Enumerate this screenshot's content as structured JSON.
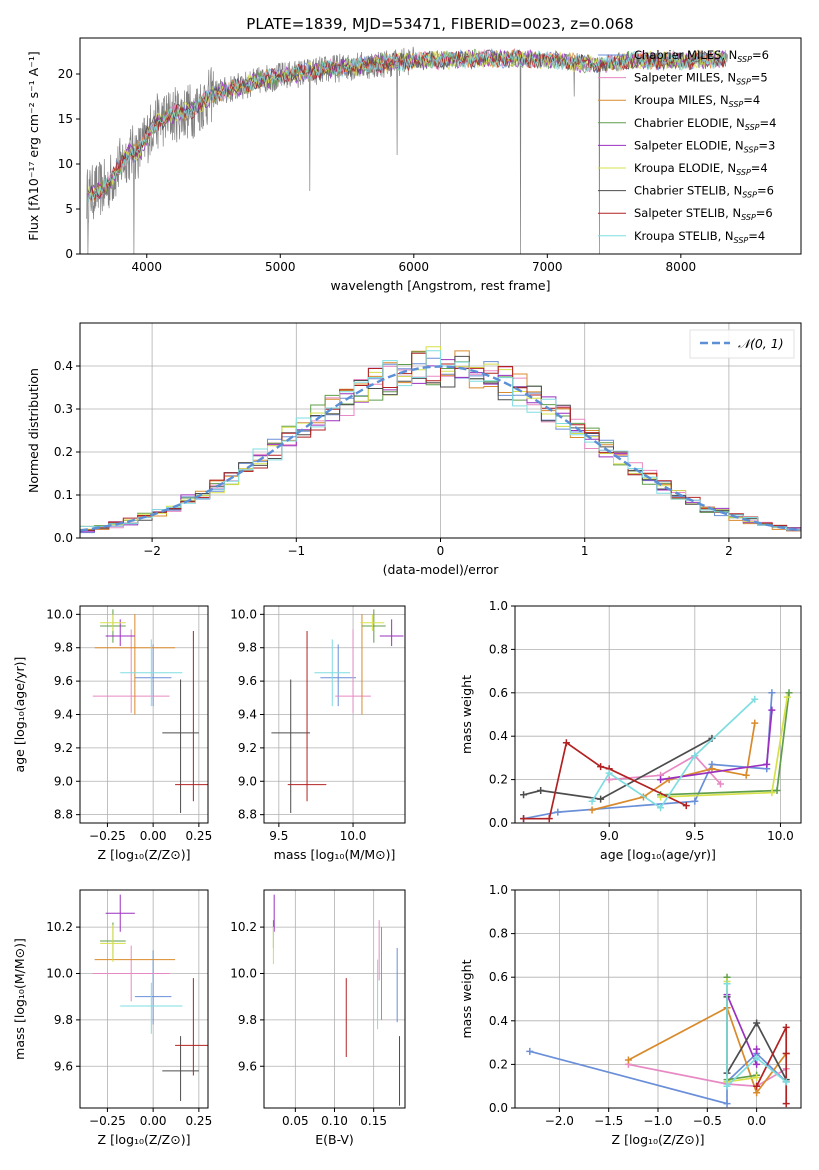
{
  "figure_title": "PLATE=1839, MJD=53471, FIBERID=0023, z=0.068",
  "colors": {
    "Chabrier MILES": "#6a8fd8",
    "Salpeter MILES": "#e78ac3",
    "Kroupa MILES": "#d98a2b",
    "Chabrier ELODIE": "#5f9e4a",
    "Salpeter ELODIE": "#9b30c0",
    "Kroupa ELODIE": "#d6e04a",
    "Chabrier STELIB": "#4d4d4d",
    "Salpeter STELIB": "#b22222",
    "Kroupa STELIB": "#7fdde0",
    "data": "#808080",
    "gaussian": "#5b8fd6"
  },
  "chart_data": [
    {
      "id": "spectrum",
      "type": "line",
      "xlabel": "wavelength [Angstrom, rest frame]",
      "ylabel": "Flux [fλ10⁻¹⁷ erg cm⁻² s⁻¹ A⁻¹]",
      "xlim": [
        3500,
        8900
      ],
      "ylim": [
        0,
        24
      ],
      "xticks": [
        4000,
        5000,
        6000,
        7000,
        8000
      ],
      "yticks": [
        0,
        5,
        10,
        15,
        20
      ],
      "legend_placement": "right",
      "legend": [
        {
          "name": "Chabrier MILES",
          "label": "Chabrier MILES, N",
          "sub": "SSP",
          "tail": "=6"
        },
        {
          "name": "Salpeter MILES",
          "label": "Salpeter MILES, N",
          "sub": "SSP",
          "tail": "=5"
        },
        {
          "name": "Kroupa MILES",
          "label": "Kroupa MILES, N",
          "sub": "SSP",
          "tail": "=4"
        },
        {
          "name": "Chabrier ELODIE",
          "label": "Chabrier ELODIE, N",
          "sub": "SSP",
          "tail": "=4"
        },
        {
          "name": "Salpeter ELODIE",
          "label": "Salpeter ELODIE, N",
          "sub": "SSP",
          "tail": "=3"
        },
        {
          "name": "Kroupa ELODIE",
          "label": "Kroupa ELODIE, N",
          "sub": "SSP",
          "tail": "=4"
        },
        {
          "name": "Chabrier STELIB",
          "label": "Chabrier STELIB, N",
          "sub": "SSP",
          "tail": "=6"
        },
        {
          "name": "Salpeter STELIB",
          "label": "Salpeter STELIB, N",
          "sub": "SSP",
          "tail": "=6"
        },
        {
          "name": "Kroupa STELIB",
          "label": "Kroupa STELIB, N",
          "sub": "SSP",
          "tail": "=4"
        }
      ],
      "continuum": [
        [
          3550,
          6.5
        ],
        [
          3700,
          7.5
        ],
        [
          3850,
          11
        ],
        [
          3950,
          11.5
        ],
        [
          4050,
          14.5
        ],
        [
          4200,
          15.5
        ],
        [
          4350,
          16
        ],
        [
          4500,
          17.8
        ],
        [
          4700,
          18.6
        ],
        [
          4900,
          19.5
        ],
        [
          5200,
          20.2
        ],
        [
          5500,
          20.8
        ],
        [
          5800,
          21.2
        ],
        [
          6000,
          21.5
        ],
        [
          6300,
          21.6
        ],
        [
          6600,
          21.7
        ],
        [
          6800,
          21.7
        ],
        [
          7000,
          21.6
        ],
        [
          7200,
          21.3
        ],
        [
          7400,
          21
        ],
        [
          7600,
          21.5
        ],
        [
          7800,
          21.5
        ],
        [
          8000,
          21.5
        ],
        [
          8200,
          21.6
        ],
        [
          8350,
          21.7
        ]
      ],
      "data_dips": [
        [
          3560,
          0
        ],
        [
          3905,
          0
        ],
        [
          5220,
          7
        ],
        [
          5875,
          11
        ],
        [
          6800,
          0
        ],
        [
          7390,
          0
        ],
        [
          7200,
          17.5
        ]
      ]
    },
    {
      "id": "residuals",
      "type": "line",
      "xlabel": "(data-model)/error",
      "ylabel": "Normed distribution",
      "xlim": [
        -2.5,
        2.5
      ],
      "ylim": [
        0,
        0.5
      ],
      "xticks": [
        -2,
        -1,
        0,
        1,
        2
      ],
      "xtick_labels": [
        "−2",
        "−1",
        "0",
        "1",
        "2"
      ],
      "yticks": [
        0,
        0.1,
        0.2,
        0.3,
        0.4
      ],
      "yticks_labels": [
        "0.0",
        "0.1",
        "0.2",
        "0.3",
        "0.4"
      ],
      "legend": "𝒩(0, 1)",
      "gaussian": {
        "mu": 0,
        "sigma": 1
      },
      "hist_bins": 50
    },
    {
      "id": "age-vs-Z",
      "type": "scatter",
      "xlabel": "Z [log₁₀(Z/Z⊙)]",
      "ylabel": "age  [log₁₀(age/yr)]",
      "xlim": [
        -0.4,
        0.3
      ],
      "ylim": [
        8.75,
        10.05
      ],
      "xticks": [
        -0.25,
        0,
        0.25
      ],
      "xtick_labels": [
        "−0.25",
        "0.00",
        "0.25"
      ],
      "yticks": [
        8.8,
        9.0,
        9.2,
        9.4,
        9.6,
        9.8,
        10.0
      ],
      "points": [
        {
          "name": "Chabrier MILES",
          "x": 0.0,
          "xerr": 0.1,
          "y": 9.62,
          "yerr": [
            0.17,
            0.2
          ]
        },
        {
          "name": "Salpeter MILES",
          "x": -0.12,
          "xerr": 0.21,
          "y": 9.51,
          "yerr": [
            0.1,
            0.4
          ]
        },
        {
          "name": "Kroupa MILES",
          "x": -0.1,
          "xerr": 0.22,
          "y": 9.8,
          "yerr": [
            0.4,
            0.2
          ]
        },
        {
          "name": "Chabrier ELODIE",
          "x": -0.22,
          "xerr": 0.07,
          "y": 9.93,
          "yerr": [
            0.1,
            0.1
          ]
        },
        {
          "name": "Salpeter ELODIE",
          "x": -0.18,
          "xerr": 0.08,
          "y": 9.87,
          "yerr": [
            0.06,
            0.1
          ]
        },
        {
          "name": "Kroupa ELODIE",
          "x": -0.22,
          "xerr": 0.07,
          "y": 9.95,
          "yerr": [
            0.05,
            0.05
          ]
        },
        {
          "name": "Chabrier STELIB",
          "x": 0.15,
          "xerr": 0.1,
          "y": 9.29,
          "yerr": [
            0.48,
            0.32
          ]
        },
        {
          "name": "Salpeter STELIB",
          "x": 0.22,
          "xerr": 0.1,
          "y": 8.98,
          "yerr": [
            0.1,
            0.92
          ]
        },
        {
          "name": "Kroupa STELIB",
          "x": -0.01,
          "xerr": 0.17,
          "y": 9.65,
          "yerr": [
            0.2,
            0.2
          ]
        }
      ]
    },
    {
      "id": "age-vs-mass",
      "type": "scatter",
      "xlabel": "mass [log₁₀(M/M⊙)]",
      "ylabel": "",
      "xlim": [
        9.4,
        10.35
      ],
      "ylim": [
        8.75,
        10.05
      ],
      "xticks": [
        9.5,
        10.0
      ],
      "xtick_labels": [
        "9.5",
        "10.0"
      ],
      "yticks": [
        8.8,
        9.0,
        9.2,
        9.4,
        9.6,
        9.8,
        10.0
      ],
      "points": [
        {
          "name": "Chabrier MILES",
          "x": 9.9,
          "xerr": 0.12,
          "y": 9.62,
          "yerr": [
            0.17,
            0.2
          ]
        },
        {
          "name": "Salpeter MILES",
          "x": 10.0,
          "xerr": 0.12,
          "y": 9.51,
          "yerr": [
            0.1,
            0.4
          ]
        },
        {
          "name": "Kroupa MILES",
          "x": 10.06,
          "xerr": 0.0,
          "y": 9.8,
          "yerr": [
            0.4,
            0.2
          ]
        },
        {
          "name": "Chabrier ELODIE",
          "x": 10.14,
          "xerr": 0.08,
          "y": 9.93,
          "yerr": [
            0.1,
            0.1
          ]
        },
        {
          "name": "Salpeter ELODIE",
          "x": 10.26,
          "xerr": 0.08,
          "y": 9.87,
          "yerr": [
            0.06,
            0.1
          ]
        },
        {
          "name": "Kroupa ELODIE",
          "x": 10.13,
          "xerr": 0.08,
          "y": 9.95,
          "yerr": [
            0.05,
            0.05
          ]
        },
        {
          "name": "Chabrier STELIB",
          "x": 9.58,
          "xerr": 0.13,
          "y": 9.29,
          "yerr": [
            0.48,
            0.32
          ]
        },
        {
          "name": "Salpeter STELIB",
          "x": 9.69,
          "xerr": 0.13,
          "y": 8.98,
          "yerr": [
            0.1,
            0.92
          ]
        },
        {
          "name": "Kroupa STELIB",
          "x": 9.86,
          "xerr": 0.12,
          "y": 9.65,
          "yerr": [
            0.2,
            0.2
          ]
        }
      ]
    },
    {
      "id": "weight-vs-age",
      "type": "line",
      "xlabel": "age  [log₁₀(age/yr)]",
      "ylabel": "mass weight",
      "xlim": [
        8.45,
        10.12
      ],
      "ylim": [
        0,
        1.0
      ],
      "xticks": [
        9.0,
        9.5,
        10.0
      ],
      "xtick_labels": [
        "9.0",
        "9.5",
        "10.0"
      ],
      "yticks": [
        0,
        0.2,
        0.4,
        0.6,
        0.8,
        1.0
      ],
      "yticks_labels": [
        "0.0",
        "0.2",
        "0.4",
        "0.6",
        "0.8",
        "1.0"
      ],
      "series": [
        {
          "name": "Chabrier MILES",
          "x": [
            8.5,
            8.7,
            9.5,
            9.6,
            9.92,
            9.95
          ],
          "y": [
            0.02,
            0.05,
            0.1,
            0.27,
            0.25,
            0.6
          ]
        },
        {
          "name": "Salpeter MILES",
          "x": [
            9.0,
            9.3,
            9.5,
            9.65
          ],
          "y": [
            0.2,
            0.22,
            0.31,
            0.18
          ]
        },
        {
          "name": "Kroupa MILES",
          "x": [
            8.9,
            9.2,
            9.35,
            9.6,
            9.8,
            9.85
          ],
          "y": [
            0.06,
            0.12,
            0.2,
            0.25,
            0.22,
            0.46
          ]
        },
        {
          "name": "Chabrier ELODIE",
          "x": [
            9.3,
            9.98,
            10.05
          ],
          "y": [
            0.13,
            0.15,
            0.6
          ]
        },
        {
          "name": "Salpeter ELODIE",
          "x": [
            9.3,
            9.92,
            9.95
          ],
          "y": [
            0.2,
            0.27,
            0.52
          ]
        },
        {
          "name": "Kroupa ELODIE",
          "x": [
            9.3,
            9.95,
            10.04
          ],
          "y": [
            0.12,
            0.14,
            0.58
          ]
        },
        {
          "name": "Chabrier STELIB",
          "x": [
            8.5,
            8.6,
            8.95,
            9.6
          ],
          "y": [
            0.13,
            0.15,
            0.11,
            0.39
          ]
        },
        {
          "name": "Salpeter STELIB",
          "x": [
            8.5,
            8.65,
            8.75,
            8.95,
            9.0,
            9.45
          ],
          "y": [
            0.02,
            0.02,
            0.37,
            0.26,
            0.25,
            0.08
          ]
        },
        {
          "name": "Kroupa STELIB",
          "x": [
            8.9,
            9.0,
            9.3,
            9.5,
            9.85
          ],
          "y": [
            0.1,
            0.23,
            0.07,
            0.31,
            0.57
          ]
        }
      ]
    },
    {
      "id": "mass-vs-Z",
      "type": "scatter",
      "xlabel": "Z [log₁₀(Z/Z⊙)]",
      "ylabel": "mass [log₁₀(M/M⊙)]",
      "xlim": [
        -0.4,
        0.3
      ],
      "ylim": [
        9.42,
        10.36
      ],
      "xticks": [
        -0.25,
        0,
        0.25
      ],
      "xtick_labels": [
        "−0.25",
        "0.00",
        "0.25"
      ],
      "yticks": [
        9.6,
        9.8,
        10.0,
        10.2
      ],
      "points": [
        {
          "name": "Chabrier MILES",
          "x": 0.0,
          "xerr": 0.1,
          "y": 9.9,
          "yerr": [
            0.12,
            0.2
          ]
        },
        {
          "name": "Salpeter MILES",
          "x": -0.12,
          "xerr": 0.21,
          "y": 10.0,
          "yerr": [
            0.12,
            0.12
          ]
        },
        {
          "name": "Kroupa MILES",
          "x": -0.1,
          "xerr": 0.22,
          "y": 10.06,
          "yerr": [
            0.0,
            0.0
          ]
        },
        {
          "name": "Chabrier ELODIE",
          "x": -0.22,
          "xerr": 0.07,
          "y": 10.14,
          "yerr": [
            0.08,
            0.08
          ]
        },
        {
          "name": "Salpeter ELODIE",
          "x": -0.18,
          "xerr": 0.08,
          "y": 10.26,
          "yerr": [
            0.08,
            0.08
          ]
        },
        {
          "name": "Kroupa ELODIE",
          "x": -0.22,
          "xerr": 0.07,
          "y": 10.13,
          "yerr": [
            0.08,
            0.08
          ]
        },
        {
          "name": "Chabrier STELIB",
          "x": 0.15,
          "xerr": 0.1,
          "y": 9.58,
          "yerr": [
            0.13,
            0.15
          ]
        },
        {
          "name": "Salpeter STELIB",
          "x": 0.22,
          "xerr": 0.1,
          "y": 9.69,
          "yerr": [
            0.13,
            0.29
          ]
        },
        {
          "name": "Kroupa STELIB",
          "x": -0.01,
          "xerr": 0.17,
          "y": 9.86,
          "yerr": [
            0.12,
            0.1
          ]
        }
      ]
    },
    {
      "id": "mass-vs-EBV",
      "type": "scatter",
      "xlabel": "E(B-V)",
      "ylabel": "",
      "xlim": [
        0.01,
        0.19
      ],
      "ylim": [
        9.42,
        10.36
      ],
      "xticks": [
        0.05,
        0.1,
        0.15
      ],
      "xtick_labels": [
        "0.05",
        "0.10",
        "0.15"
      ],
      "yticks": [
        9.6,
        9.8,
        10.0,
        10.2
      ],
      "points": [
        {
          "name": "Chabrier MILES",
          "x": 0.18,
          "xerr": 0,
          "y": 9.95,
          "yerr": [
            0.16,
            0.16
          ]
        },
        {
          "name": "Salpeter MILES",
          "x": 0.157,
          "xerr": 0,
          "y": 10.1,
          "yerr": [
            0.13,
            0.13
          ]
        },
        {
          "name": "Kroupa MILES",
          "x": 0.16,
          "xerr": 0,
          "y": 10.0,
          "yerr": [
            0.2,
            0.2
          ]
        },
        {
          "name": "Chabrier ELODIE",
          "x": 0.022,
          "xerr": 0,
          "y": 10.17,
          "yerr": [
            0.06,
            0.06
          ]
        },
        {
          "name": "Salpeter ELODIE",
          "x": 0.023,
          "xerr": 0,
          "y": 10.26,
          "yerr": [
            0.08,
            0.08
          ]
        },
        {
          "name": "Kroupa ELODIE",
          "x": 0.022,
          "xerr": 0,
          "y": 10.12,
          "yerr": [
            0.08,
            0.08
          ]
        },
        {
          "name": "Chabrier STELIB",
          "x": 0.183,
          "xerr": 0,
          "y": 9.58,
          "yerr": [
            0.15,
            0.15
          ]
        },
        {
          "name": "Salpeter STELIB",
          "x": 0.115,
          "xerr": 0,
          "y": 9.81,
          "yerr": [
            0.17,
            0.17
          ]
        },
        {
          "name": "Kroupa STELIB",
          "x": 0.155,
          "xerr": 0,
          "y": 9.91,
          "yerr": [
            0.15,
            0.15
          ]
        }
      ]
    },
    {
      "id": "weight-vs-Z",
      "type": "line",
      "xlabel": "Z [log₁₀(Z/Z⊙)]",
      "ylabel": "mass weight",
      "xlim": [
        -2.45,
        0.45
      ],
      "ylim": [
        0,
        1.0
      ],
      "xticks": [
        -2.0,
        -1.5,
        -1.0,
        -0.5,
        0.0
      ],
      "xtick_labels": [
        "−2.0",
        "−1.5",
        "−1.0",
        "−0.5",
        "0.0"
      ],
      "yticks": [
        0,
        0.2,
        0.4,
        0.6,
        0.8,
        1.0
      ],
      "yticks_labels": [
        "0.0",
        "0.2",
        "0.4",
        "0.6",
        "0.8",
        "1.0"
      ],
      "series": [
        {
          "name": "Chabrier MILES",
          "x": [
            -2.3,
            -0.3,
            -0.3,
            0.0,
            0.3
          ],
          "y": [
            0.26,
            0.02,
            0.12,
            0.25,
            0.12
          ]
        },
        {
          "name": "Salpeter MILES",
          "x": [
            -1.3,
            -0.3,
            0.0,
            0.3
          ],
          "y": [
            0.2,
            0.11,
            0.1,
            0.18
          ]
        },
        {
          "name": "Kroupa MILES",
          "x": [
            -1.3,
            -0.3,
            0.0,
            0.3
          ],
          "y": [
            0.22,
            0.46,
            0.07,
            0.25
          ]
        },
        {
          "name": "Chabrier ELODIE",
          "x": [
            -0.3,
            -0.3,
            0.0
          ],
          "y": [
            0.6,
            0.13,
            0.15
          ]
        },
        {
          "name": "Salpeter ELODIE",
          "x": [
            -0.3,
            0.0,
            0.0
          ],
          "y": [
            0.52,
            0.2,
            0.27
          ]
        },
        {
          "name": "Kroupa ELODIE",
          "x": [
            -0.3,
            -0.3,
            0.0
          ],
          "y": [
            0.58,
            0.12,
            0.14
          ]
        },
        {
          "name": "Chabrier STELIB",
          "x": [
            -0.3,
            -0.3,
            0.0,
            0.3
          ],
          "y": [
            0.51,
            0.16,
            0.39,
            0.13
          ]
        },
        {
          "name": "Salpeter STELIB",
          "x": [
            0.0,
            0.3,
            0.3,
            0.3
          ],
          "y": [
            0.1,
            0.37,
            0.02,
            0.25
          ]
        },
        {
          "name": "Kroupa STELIB",
          "x": [
            -0.3,
            -0.3,
            0.0,
            0.3
          ],
          "y": [
            0.57,
            0.1,
            0.23,
            0.12
          ]
        }
      ]
    }
  ]
}
